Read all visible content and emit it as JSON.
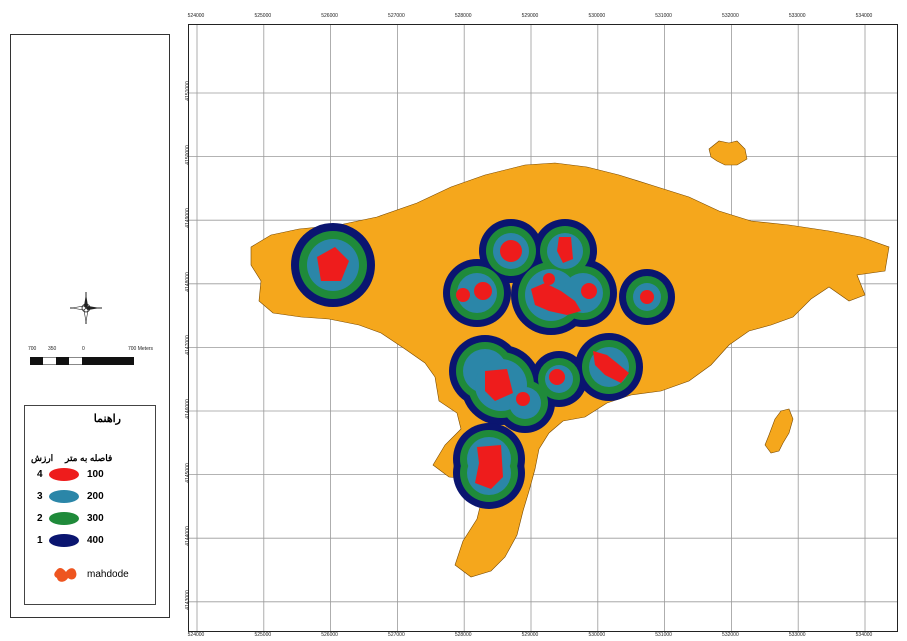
{
  "map": {
    "x_ticks": [
      "524000",
      "525000",
      "526000",
      "527000",
      "528000",
      "529000",
      "530000",
      "531000",
      "532000",
      "533000",
      "534000"
    ],
    "y_ticks": [
      "4151000",
      "4150000",
      "4149000",
      "4148000",
      "4147000",
      "4146000",
      "4145000",
      "4144000",
      "4143000"
    ],
    "colors": {
      "land": "#F5A71C",
      "ring_400": "#0A1570",
      "ring_300": "#1F8A3A",
      "ring_200": "#2B86A8",
      "ring_100": "#EE1C1C",
      "grid": "#9a9a9a"
    }
  },
  "scalebar": {
    "labels": [
      "700",
      "350",
      "0",
      "700 Meters"
    ]
  },
  "legend": {
    "title": "راهنما",
    "header_distance": "فاصله به متر",
    "header_value": "ارزش",
    "items": [
      {
        "value": "4",
        "distance": "100",
        "color": "#EE1C1C"
      },
      {
        "value": "3",
        "distance": "200",
        "color": "#2B86A8"
      },
      {
        "value": "2",
        "distance": "300",
        "color": "#1F8A3A"
      },
      {
        "value": "1",
        "distance": "400",
        "color": "#0A1570"
      }
    ],
    "mahdode_label": "mahdode",
    "mahdode_color": "#EE5520"
  },
  "north_arrow": {
    "icon": "north-arrow-icon"
  }
}
